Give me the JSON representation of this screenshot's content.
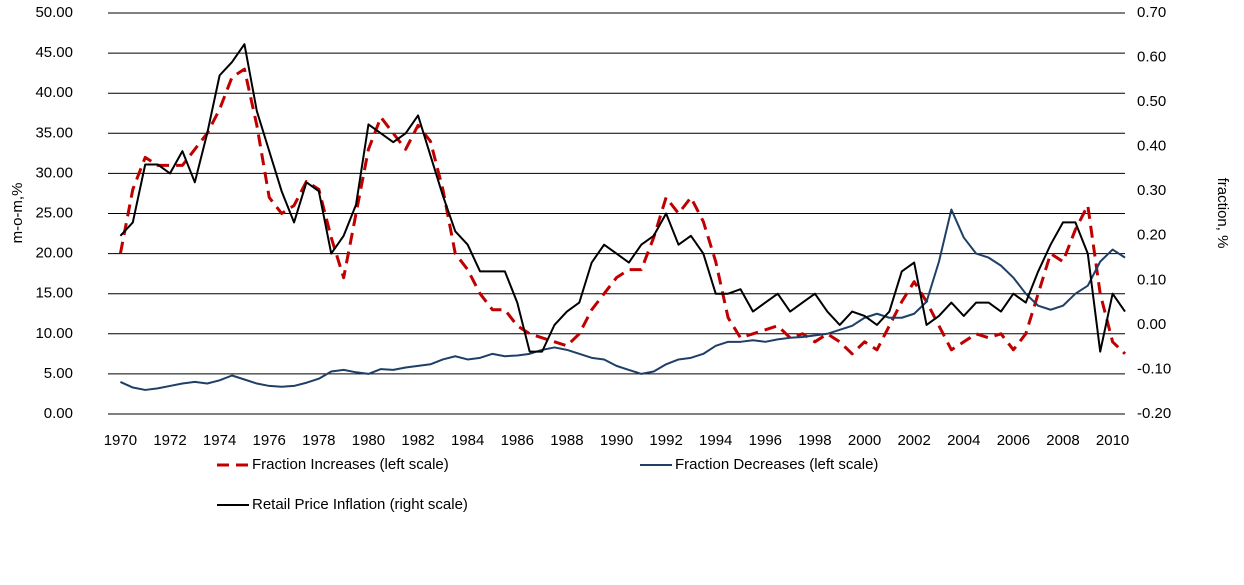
{
  "chart_data": {
    "type": "line",
    "y_label": "m-o-m,%",
    "y2_label": "fraction, %",
    "x": [
      1970,
      1970.5,
      1971,
      1971.5,
      1972,
      1972.5,
      1973,
      1973.5,
      1974,
      1974.5,
      1975,
      1975.5,
      1976,
      1976.5,
      1977,
      1977.5,
      1978,
      1978.5,
      1979,
      1979.5,
      1980,
      1980.5,
      1981,
      1981.5,
      1982,
      1982.5,
      1983,
      1983.5,
      1984,
      1984.5,
      1985,
      1985.5,
      1986,
      1986.5,
      1987,
      1987.5,
      1988,
      1988.5,
      1989,
      1989.5,
      1990,
      1990.5,
      1991,
      1991.5,
      1992,
      1992.5,
      1993,
      1993.5,
      1994,
      1994.5,
      1995,
      1995.5,
      1996,
      1996.5,
      1997,
      1997.5,
      1998,
      1998.5,
      1999,
      1999.5,
      2000,
      2000.5,
      2001,
      2001.5,
      2002,
      2002.5,
      2003,
      2003.5,
      2004,
      2004.5,
      2005,
      2005.5,
      2006,
      2006.5,
      2007,
      2007.5,
      2008,
      2008.5,
      2009,
      2009.5,
      2010,
      2010.5
    ],
    "xlim": [
      1969.5,
      2010.5
    ],
    "xticks": [
      1970,
      1972,
      1974,
      1976,
      1978,
      1980,
      1982,
      1984,
      1986,
      1988,
      1990,
      1992,
      1994,
      1996,
      1998,
      2000,
      2002,
      2004,
      2006,
      2008,
      2010
    ],
    "ylim": [
      0,
      50
    ],
    "yticks": [
      {
        "value": 0,
        "label": "0.00"
      },
      {
        "value": 5,
        "label": "5.00"
      },
      {
        "value": 10,
        "label": "10.00"
      },
      {
        "value": 15,
        "label": "15.00"
      },
      {
        "value": 20,
        "label": "20.00"
      },
      {
        "value": 25,
        "label": "25.00"
      },
      {
        "value": 30,
        "label": "30.00"
      },
      {
        "value": 35,
        "label": "35.00"
      },
      {
        "value": 40,
        "label": "40.00"
      },
      {
        "value": 45,
        "label": "45.00"
      },
      {
        "value": 50,
        "label": "50.00"
      }
    ],
    "y2lim": [
      -0.2,
      0.7
    ],
    "y2ticks": [
      {
        "value": -0.2,
        "label": "-0.20"
      },
      {
        "value": -0.1,
        "label": "-0.10"
      },
      {
        "value": 0,
        "label": "0.00"
      },
      {
        "value": 0.1,
        "label": "0.10"
      },
      {
        "value": 0.2,
        "label": "0.20"
      },
      {
        "value": 0.3,
        "label": "0.30"
      },
      {
        "value": 0.4,
        "label": "0.40"
      },
      {
        "value": 0.5,
        "label": "0.50"
      },
      {
        "value": 0.6,
        "label": "0.60"
      },
      {
        "value": 0.7,
        "label": "0.70"
      }
    ],
    "grid": true,
    "legend": "bottom",
    "series": [
      {
        "name": "Fraction Increases (left scale)",
        "color": "#c00000",
        "dash": true,
        "values": [
          20,
          28,
          32,
          31,
          31,
          31,
          33,
          35,
          38,
          42,
          43,
          36,
          27,
          25,
          26,
          29,
          28,
          22,
          17,
          25,
          33,
          37,
          35,
          33,
          36,
          34,
          28,
          20,
          18,
          15,
          13,
          13,
          11,
          10,
          9.5,
          9,
          8.5,
          10,
          13,
          15,
          17,
          18,
          18,
          22,
          27,
          25,
          27,
          24,
          19,
          12,
          9.5,
          10,
          10.5,
          11,
          9.5,
          10,
          9,
          10,
          9,
          7.5,
          9,
          8,
          11,
          14,
          16.5,
          14,
          11,
          8,
          9,
          10,
          9.5,
          10,
          8,
          10,
          15,
          20,
          19,
          23,
          26,
          15,
          9,
          7.5
        ]
      },
      {
        "name": "Fraction Decreases (left scale)",
        "color": "#1f3f66",
        "dash": false,
        "values": [
          4,
          3.3,
          3,
          3.2,
          3.5,
          3.8,
          4,
          3.8,
          4.2,
          4.8,
          4.3,
          3.8,
          3.5,
          3.4,
          3.5,
          3.9,
          4.4,
          5.3,
          5.5,
          5.2,
          5,
          5.6,
          5.5,
          5.8,
          6,
          6.2,
          6.8,
          7.2,
          6.8,
          7,
          7.5,
          7.2,
          7.3,
          7.5,
          8,
          8.3,
          8,
          7.5,
          7,
          6.8,
          6,
          5.5,
          5,
          5.3,
          6.2,
          6.8,
          7,
          7.5,
          8.5,
          9,
          9,
          9.2,
          9,
          9.3,
          9.5,
          9.6,
          9.8,
          10,
          10.5,
          11,
          12,
          12.5,
          12,
          12,
          12.5,
          14,
          19,
          25.5,
          22,
          20,
          19.5,
          18.5,
          17,
          15,
          13.5,
          13,
          13.5,
          15,
          16,
          19,
          20.5,
          19.5
        ]
      },
      {
        "name": "Retail Price Inflation (right scale)",
        "color": "#000000",
        "dash": false,
        "axis": "y2",
        "values": [
          0.2,
          0.23,
          0.36,
          0.36,
          0.34,
          0.39,
          0.32,
          0.43,
          0.56,
          0.59,
          0.63,
          0.48,
          0.39,
          0.3,
          0.23,
          0.32,
          0.3,
          0.16,
          0.2,
          0.27,
          0.45,
          0.43,
          0.41,
          0.43,
          0.47,
          0.38,
          0.29,
          0.21,
          0.18,
          0.12,
          0.12,
          0.12,
          0.05,
          -0.06,
          -0.06,
          0.0,
          0.03,
          0.05,
          0.14,
          0.18,
          0.16,
          0.14,
          0.18,
          0.2,
          0.25,
          0.18,
          0.2,
          0.16,
          0.07,
          0.07,
          0.08,
          0.03,
          0.05,
          0.07,
          0.03,
          0.05,
          0.07,
          0.03,
          0.0,
          0.03,
          0.02,
          0.0,
          0.03,
          0.12,
          0.14,
          0.0,
          0.02,
          0.05,
          0.02,
          0.05,
          0.05,
          0.03,
          0.07,
          0.05,
          0.12,
          0.18,
          0.23,
          0.23,
          0.16,
          -0.06,
          0.07,
          0.03
        ]
      }
    ]
  }
}
